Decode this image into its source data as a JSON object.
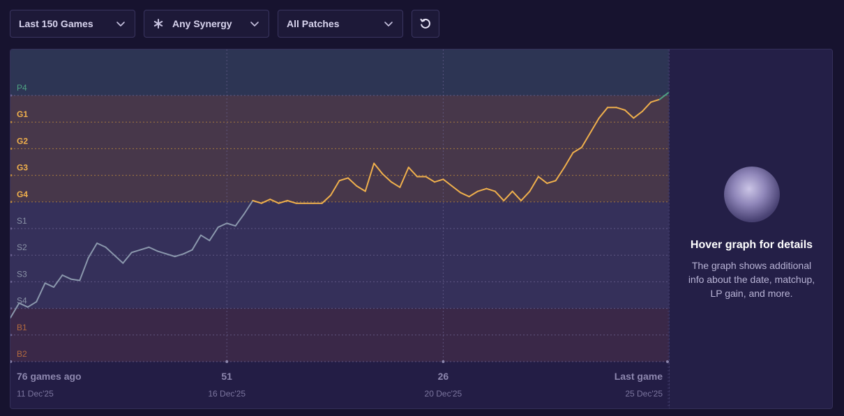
{
  "toolbar": {
    "games_filter": "Last 150 Games",
    "synergy_filter": "Any Synergy",
    "patch_filter": "All Patches",
    "icons": {
      "synergy": "asterisk-icon",
      "chevron": "chevron-down-icon",
      "refresh": "refresh-icon"
    }
  },
  "sidebar": {
    "title": "Hover graph for details",
    "description": "The graph shows additional info about the date, matchup, LP gain, and more."
  },
  "chart_data": {
    "type": "line",
    "tier_labels": [
      "P4",
      "G1",
      "G2",
      "G3",
      "G4",
      "S1",
      "S2",
      "S3",
      "S4",
      "B1",
      "B2"
    ],
    "y_scale_note": "y value = rank step index, 0 = B2 ... 10 = P4",
    "x_ticks": [
      {
        "label": "76 games ago",
        "date": "11 Dec'25"
      },
      {
        "label": "51",
        "date": "16 Dec'25"
      },
      {
        "label": "26",
        "date": "20 Dec'25"
      },
      {
        "label": "Last game",
        "date": "25 Dec'25"
      }
    ],
    "y": [
      1.65,
      2.2,
      2.05,
      2.25,
      2.95,
      2.8,
      3.25,
      3.1,
      3.05,
      3.9,
      4.45,
      4.3,
      4.0,
      3.7,
      4.1,
      4.2,
      4.3,
      4.15,
      4.05,
      3.95,
      4.05,
      4.2,
      4.75,
      4.55,
      5.05,
      5.2,
      5.1,
      5.55,
      6.05,
      5.95,
      6.1,
      5.95,
      6.05,
      5.95,
      5.95,
      5.95,
      5.95,
      6.25,
      6.8,
      6.9,
      6.6,
      6.4,
      7.45,
      7.05,
      6.75,
      6.55,
      7.3,
      6.95,
      6.95,
      6.75,
      6.85,
      6.6,
      6.35,
      6.2,
      6.4,
      6.5,
      6.4,
      6.05,
      6.4,
      6.05,
      6.4,
      6.95,
      6.7,
      6.8,
      7.3,
      7.85,
      8.05,
      8.6,
      9.15,
      9.55,
      9.55,
      9.45,
      9.15,
      9.4,
      9.75,
      9.85,
      10.1
    ],
    "series_colors": {
      "silver": "#8b98ad",
      "gold": "#f0b04c",
      "platinum": "#4fa383"
    },
    "band_colors": {
      "platinum": "#2d3554",
      "gold": "#47374a",
      "silver": "#35305a",
      "bronze": "#3a2848"
    },
    "tier_label_colors": {
      "P4": "#4fa383",
      "gold": "#f0b04c",
      "silver": "#8b94a8",
      "bronze": "#b36a3f"
    }
  }
}
